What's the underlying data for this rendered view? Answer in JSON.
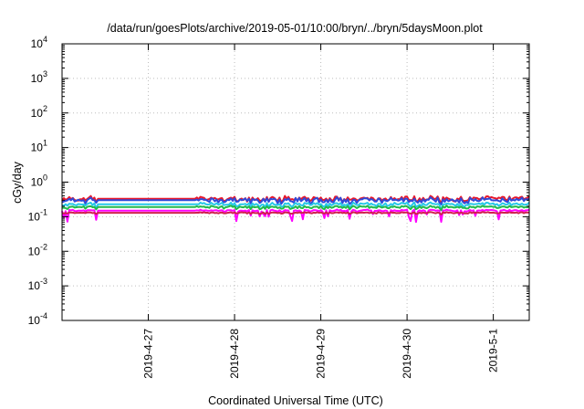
{
  "chart_data": {
    "type": "line",
    "title": "/data/run/goesPlots/archive/2019-05-01/10:00/bryn/../bryn/5daysMoon.plot",
    "xlabel": "Coordinated Universal Time (UTC)",
    "ylabel": "cGy/day",
    "yscale": "log",
    "ylim": [
      0.0001,
      10000
    ],
    "xlim": [
      "2019-04-26 00:00",
      "2019-05-01 10:00"
    ],
    "y_ticks": [
      {
        "value": 0.0001,
        "mantissa": "10",
        "exp": "-4"
      },
      {
        "value": 0.001,
        "mantissa": "10",
        "exp": "-3"
      },
      {
        "value": 0.01,
        "mantissa": "10",
        "exp": "-2"
      },
      {
        "value": 0.1,
        "mantissa": "10",
        "exp": "-1"
      },
      {
        "value": 1,
        "mantissa": "10",
        "exp": "0"
      },
      {
        "value": 10,
        "mantissa": "10",
        "exp": "1"
      },
      {
        "value": 100,
        "mantissa": "10",
        "exp": "2"
      },
      {
        "value": 1000,
        "mantissa": "10",
        "exp": "3"
      },
      {
        "value": 10000,
        "mantissa": "10",
        "exp": "4"
      }
    ],
    "x_ticks": [
      {
        "date": "2019-04-27 00:00",
        "label": "2019-4-27"
      },
      {
        "date": "2019-04-28 00:00",
        "label": "2019-4-28"
      },
      {
        "date": "2019-04-29 00:00",
        "label": "2019-4-29"
      },
      {
        "date": "2019-04-30 00:00",
        "label": "2019-4-30"
      },
      {
        "date": "2019-05-01 00:00",
        "label": "2019-5-1"
      }
    ],
    "grid": true,
    "legend": "none",
    "series": [
      {
        "color": "#e8172a",
        "base": 0.33,
        "noise": 0.14,
        "dip": 0.08
      },
      {
        "color": "#2f49d8",
        "base": 0.3,
        "noise": 0.15,
        "dip": 0.1
      },
      {
        "color": "#27c8e8",
        "base": 0.23,
        "noise": 0.1,
        "dip": 0.14
      },
      {
        "color": "#22b84a",
        "base": 0.19,
        "noise": 0.07,
        "dip": 0.1
      },
      {
        "color": "#ff00ff",
        "base": 0.15,
        "noise": 0.05,
        "dip": 0.4
      },
      {
        "color": "#cf1f4d",
        "base": 0.13,
        "noise": 0.04,
        "dip": 0.05
      }
    ],
    "flat_segments": [
      {
        "start": "2019-04-26 10:00",
        "end": "2019-04-27 13:00"
      }
    ]
  }
}
